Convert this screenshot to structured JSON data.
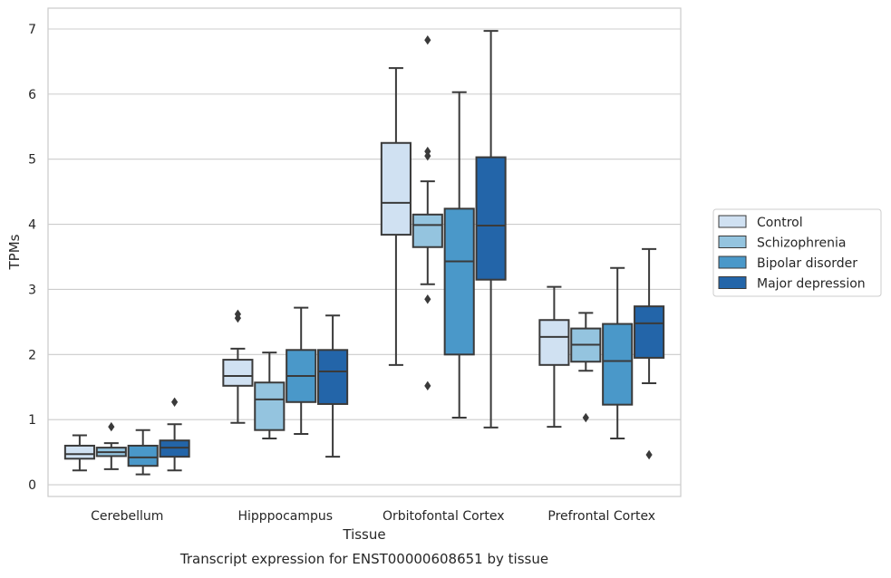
{
  "chart_data": {
    "type": "box",
    "title": "",
    "caption": "Transcript expression for ENST00000608651 by tissue",
    "xlabel": "Tissue",
    "ylabel": "TPMs",
    "ylim": [
      -0.18,
      7.32
    ],
    "yticks": [
      0,
      1,
      2,
      3,
      4,
      5,
      6,
      7
    ],
    "grid": "horizontal",
    "legend": {
      "placement": "right",
      "entries": [
        "Control",
        "Schizophrenia",
        "Bipolar disorder",
        "Major depression"
      ]
    },
    "colors": [
      "#d0e1f2",
      "#94c4df",
      "#4a98c9",
      "#2365a9"
    ],
    "categories": [
      "Cerebellum",
      "Hipppocampus",
      "Orbitofontal Cortex",
      "Prefrontal Cortex"
    ],
    "series": [
      {
        "name": "Control",
        "boxes": [
          {
            "min": 0.22,
            "q1": 0.4,
            "median": 0.47,
            "q3": 0.6,
            "max": 0.76,
            "outliers": []
          },
          {
            "min": 0.95,
            "q1": 1.52,
            "median": 1.67,
            "q3": 1.92,
            "max": 2.09,
            "outliers": [
              2.56,
              2.62
            ]
          },
          {
            "min": 1.84,
            "q1": 3.84,
            "median": 4.33,
            "q3": 5.25,
            "max": 6.4,
            "outliers": []
          },
          {
            "min": 0.89,
            "q1": 1.84,
            "median": 2.27,
            "q3": 2.53,
            "max": 3.04,
            "outliers": []
          }
        ]
      },
      {
        "name": "Schizophrenia",
        "boxes": [
          {
            "min": 0.24,
            "q1": 0.44,
            "median": 0.5,
            "q3": 0.57,
            "max": 0.64,
            "outliers": [
              0.89
            ]
          },
          {
            "min": 0.71,
            "q1": 0.84,
            "median": 1.31,
            "q3": 1.57,
            "max": 2.03,
            "outliers": []
          },
          {
            "min": 3.08,
            "q1": 3.65,
            "median": 3.99,
            "q3": 4.15,
            "max": 4.66,
            "outliers": [
              6.83,
              5.12,
              5.05,
              2.85,
              1.52
            ]
          },
          {
            "min": 1.75,
            "q1": 1.89,
            "median": 2.15,
            "q3": 2.4,
            "max": 2.64,
            "outliers": [
              1.03
            ]
          }
        ]
      },
      {
        "name": "Bipolar disorder",
        "boxes": [
          {
            "min": 0.16,
            "q1": 0.29,
            "median": 0.42,
            "q3": 0.6,
            "max": 0.84,
            "outliers": []
          },
          {
            "min": 0.78,
            "q1": 1.27,
            "median": 1.67,
            "q3": 2.07,
            "max": 2.72,
            "outliers": []
          },
          {
            "min": 1.03,
            "q1": 2.0,
            "median": 3.43,
            "q3": 4.24,
            "max": 6.03,
            "outliers": []
          },
          {
            "min": 0.71,
            "q1": 1.23,
            "median": 1.9,
            "q3": 2.47,
            "max": 3.33,
            "outliers": []
          }
        ]
      },
      {
        "name": "Major depression",
        "boxes": [
          {
            "min": 0.22,
            "q1": 0.43,
            "median": 0.57,
            "q3": 0.68,
            "max": 0.93,
            "outliers": [
              1.27
            ]
          },
          {
            "min": 0.43,
            "q1": 1.24,
            "median": 1.74,
            "q3": 2.07,
            "max": 2.6,
            "outliers": []
          },
          {
            "min": 0.88,
            "q1": 3.15,
            "median": 3.98,
            "q3": 5.03,
            "max": 6.97,
            "outliers": []
          },
          {
            "min": 1.56,
            "q1": 1.95,
            "median": 2.48,
            "q3": 2.74,
            "max": 3.62,
            "outliers": [
              0.46
            ]
          }
        ]
      }
    ]
  }
}
